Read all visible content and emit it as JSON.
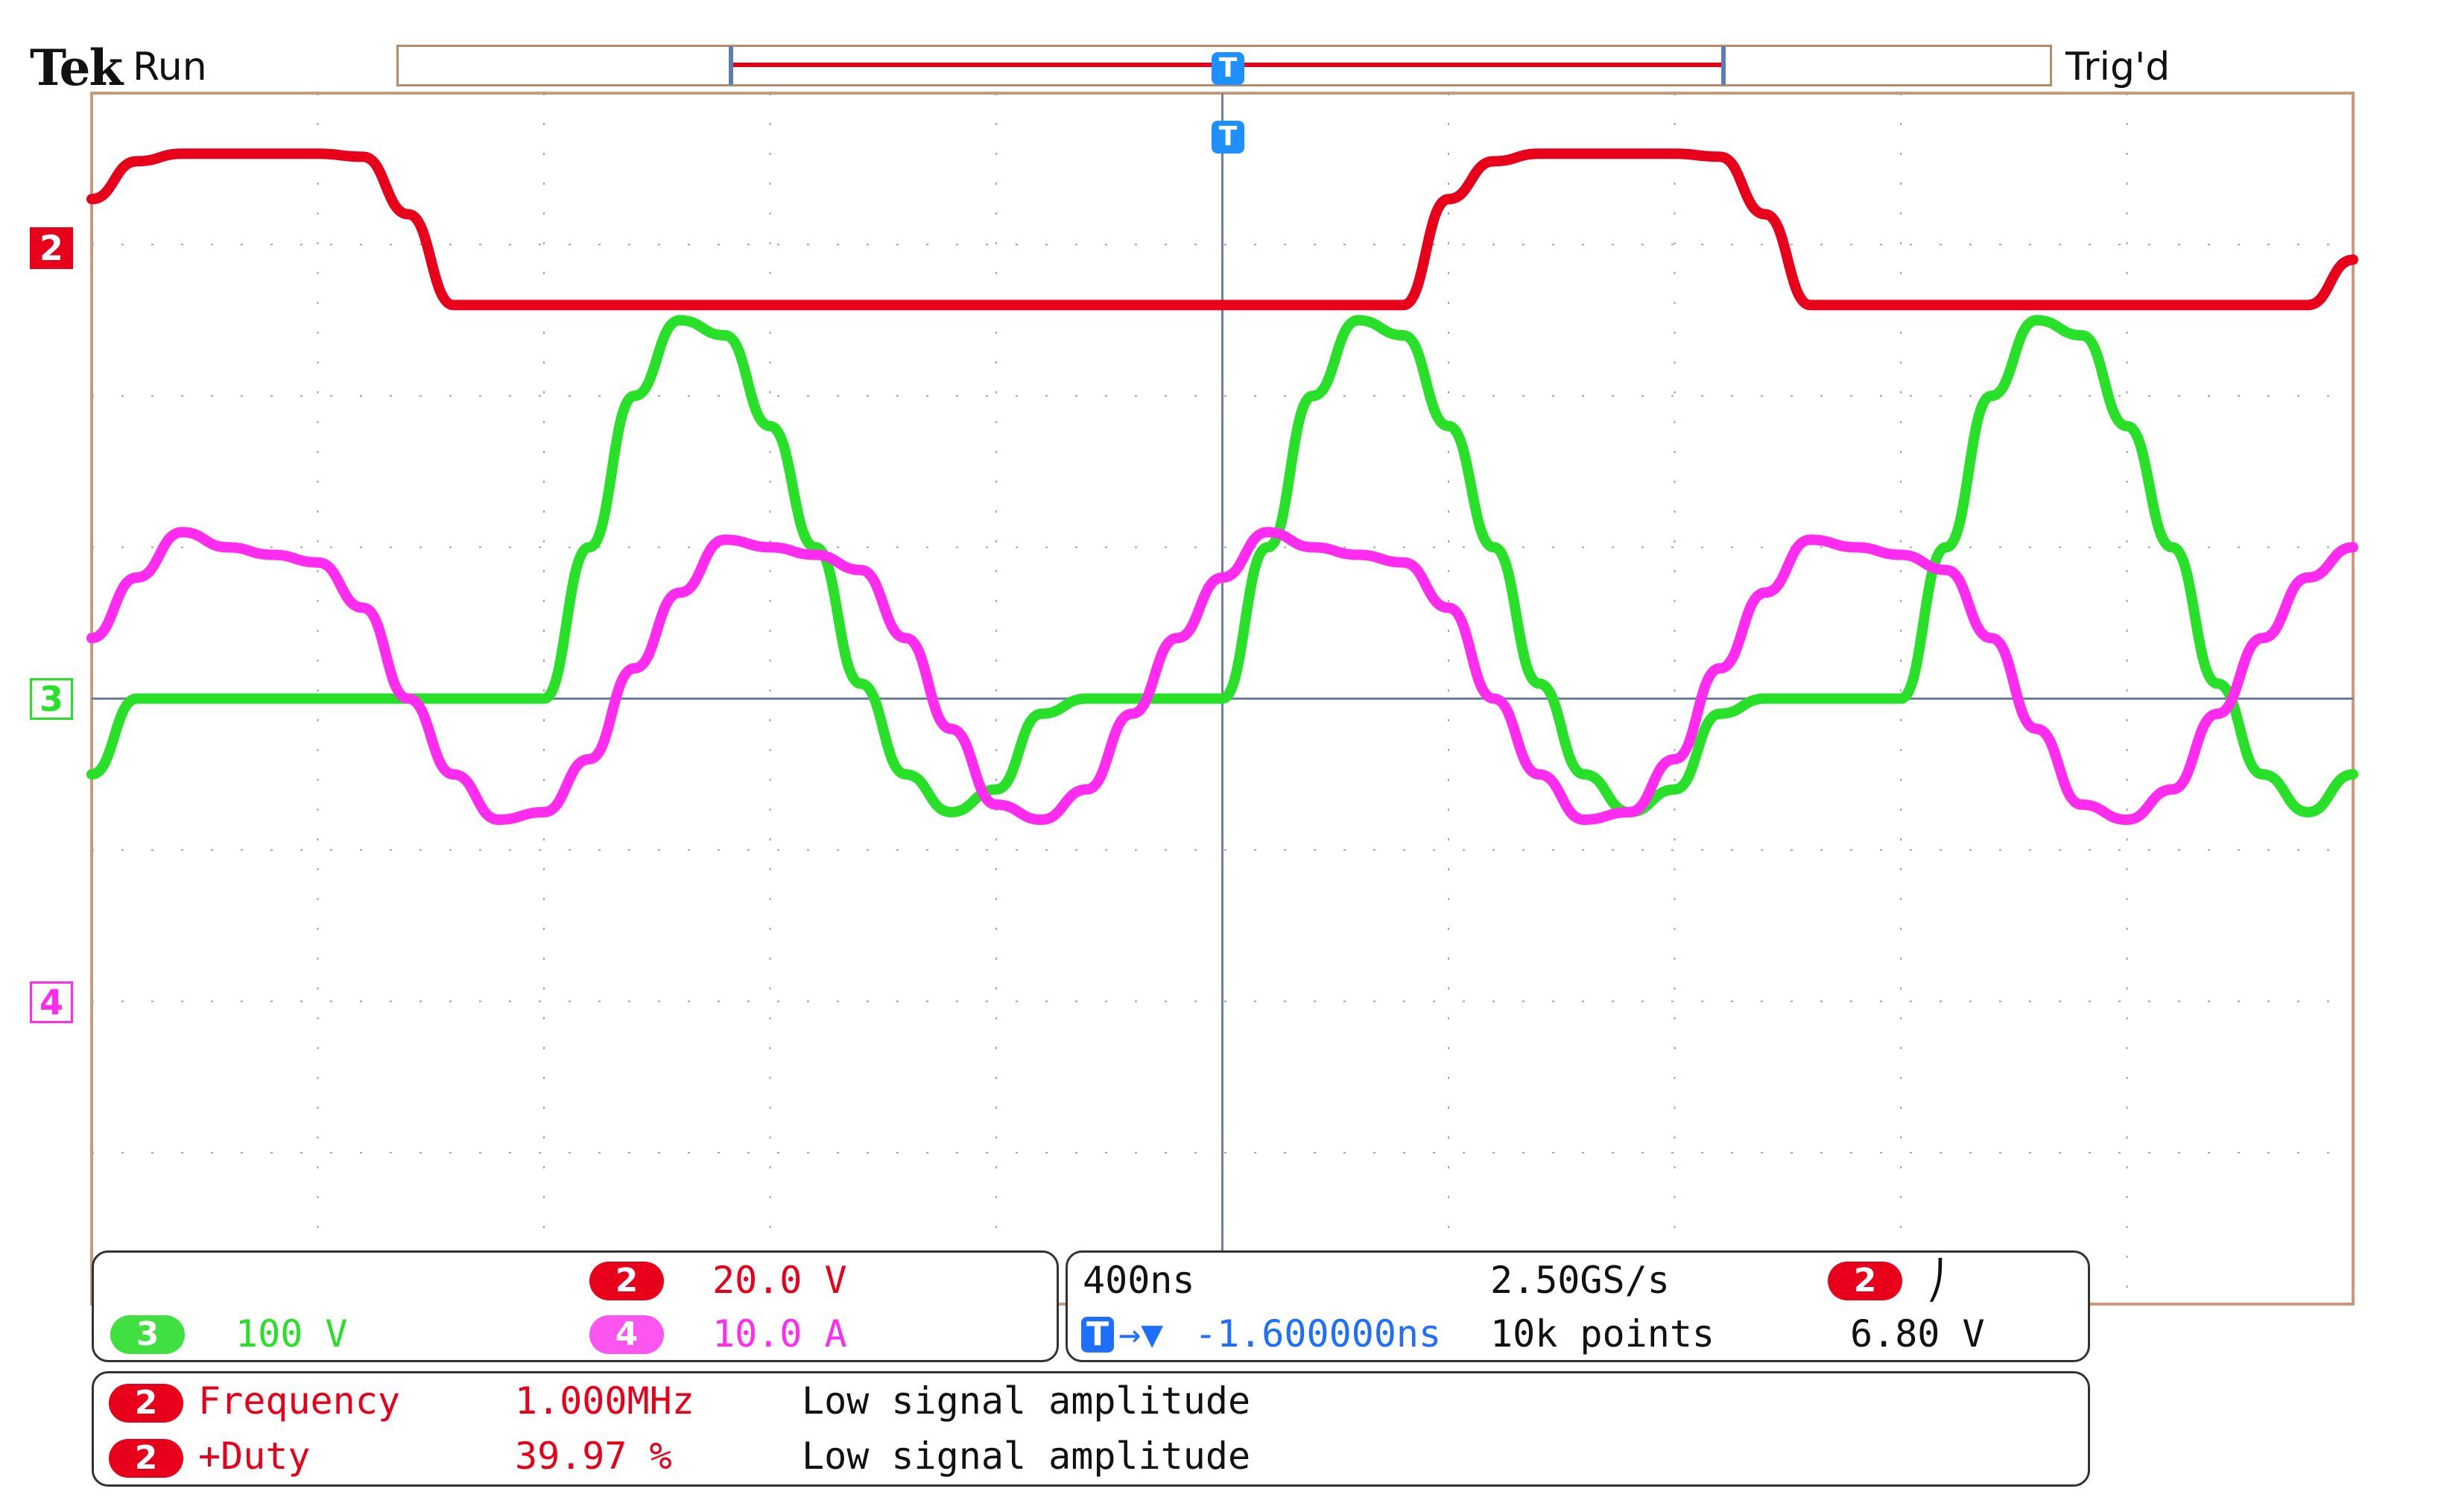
{
  "header": {
    "brand": "Tek",
    "acq_state": "Run",
    "trigger_state": "Trig'd",
    "trigger_marker": "T"
  },
  "channels": {
    "ch2": {
      "label": "2",
      "color": "#e8001a",
      "scale": "20.0 V"
    },
    "ch3": {
      "label": "3",
      "color": "#28e028",
      "scale": "100 V"
    },
    "ch4": {
      "label": "4",
      "color": "#ff2cf0",
      "scale": "10.0 A"
    }
  },
  "timebase": {
    "time_per_div": "400ns",
    "sample_rate": "2.50GS/s",
    "record_length": "10k points",
    "trigger_delay_prefix": "T",
    "trigger_delay_arrow": "→▼",
    "trigger_delay": "-1.600000ns",
    "trigger_source": "2",
    "trigger_slope_icon": "rising-edge-icon",
    "trigger_slope_glyph": "⎠",
    "trigger_level": "6.80 V"
  },
  "measurements": [
    {
      "source": "2",
      "name": "Frequency",
      "value": "1.000MHz",
      "status": "Low signal amplitude"
    },
    {
      "source": "2",
      "name": "+Duty",
      "value": "39.97 %",
      "status": "Low signal amplitude"
    }
  ],
  "chart_data": {
    "type": "line",
    "title": "",
    "xlabel": "",
    "ylabel": "",
    "x_unit_per_div": "400ns",
    "x_divisions": 10,
    "y_divisions": 8,
    "grid": true,
    "x": [
      0.0,
      0.2,
      0.4,
      0.6,
      0.8,
      1.0,
      1.2,
      1.4,
      1.6,
      1.8,
      2.0,
      2.2,
      2.4,
      2.6,
      2.8,
      3.0,
      3.2,
      3.4,
      3.6,
      3.8,
      4.0,
      4.2,
      4.4,
      4.6,
      4.8,
      5.0,
      5.2,
      5.4,
      5.6,
      5.8,
      6.0,
      6.2,
      6.4,
      6.6,
      6.8,
      7.0,
      7.2,
      7.4,
      7.6,
      7.8,
      8.0,
      8.2,
      8.4,
      8.6,
      8.8,
      9.0,
      9.2,
      9.4,
      9.6,
      9.8,
      10.0
    ],
    "series": [
      {
        "name": "2",
        "color": "#e8001a",
        "values": [
          3.3,
          3.55,
          3.6,
          3.6,
          3.6,
          3.6,
          3.58,
          3.2,
          2.6,
          2.6,
          2.6,
          2.6,
          2.6,
          2.6,
          2.6,
          2.6,
          2.6,
          2.6,
          2.6,
          2.6,
          2.6,
          2.6,
          2.6,
          2.6,
          2.6,
          2.6,
          2.6,
          2.6,
          2.6,
          2.6,
          3.3,
          3.55,
          3.6,
          3.6,
          3.6,
          3.6,
          3.58,
          3.2,
          2.6,
          2.6,
          2.6,
          2.6,
          2.6,
          2.6,
          2.6,
          2.6,
          2.6,
          2.6,
          2.6,
          2.6,
          2.9
        ]
      },
      {
        "name": "3",
        "color": "#28e028",
        "values": [
          -0.5,
          0.0,
          0.0,
          0.0,
          0.0,
          0.0,
          0.0,
          0.0,
          0.0,
          0.0,
          0.0,
          1.0,
          2.0,
          2.5,
          2.4,
          1.8,
          1.0,
          0.1,
          -0.5,
          -0.75,
          -0.6,
          -0.1,
          0.0,
          0.0,
          0.0,
          0.0,
          1.0,
          2.0,
          2.5,
          2.4,
          1.8,
          1.0,
          0.1,
          -0.5,
          -0.75,
          -0.6,
          -0.1,
          0.0,
          0.0,
          0.0,
          0.0,
          1.0,
          2.0,
          2.5,
          2.4,
          1.8,
          1.0,
          0.1,
          -0.5,
          -0.75,
          -0.5
        ]
      },
      {
        "name": "4",
        "color": "#ff2cf0",
        "values": [
          0.4,
          0.8,
          1.1,
          1.0,
          0.95,
          0.9,
          0.6,
          0.0,
          -0.5,
          -0.8,
          -0.75,
          -0.4,
          0.2,
          0.7,
          1.05,
          1.0,
          0.95,
          0.85,
          0.4,
          -0.2,
          -0.7,
          -0.8,
          -0.6,
          -0.1,
          0.4,
          0.8,
          1.1,
          1.0,
          0.95,
          0.9,
          0.6,
          0.0,
          -0.5,
          -0.8,
          -0.75,
          -0.4,
          0.2,
          0.7,
          1.05,
          1.0,
          0.95,
          0.85,
          0.4,
          -0.2,
          -0.7,
          -0.8,
          -0.6,
          -0.1,
          0.4,
          0.8,
          1.0
        ]
      }
    ]
  }
}
